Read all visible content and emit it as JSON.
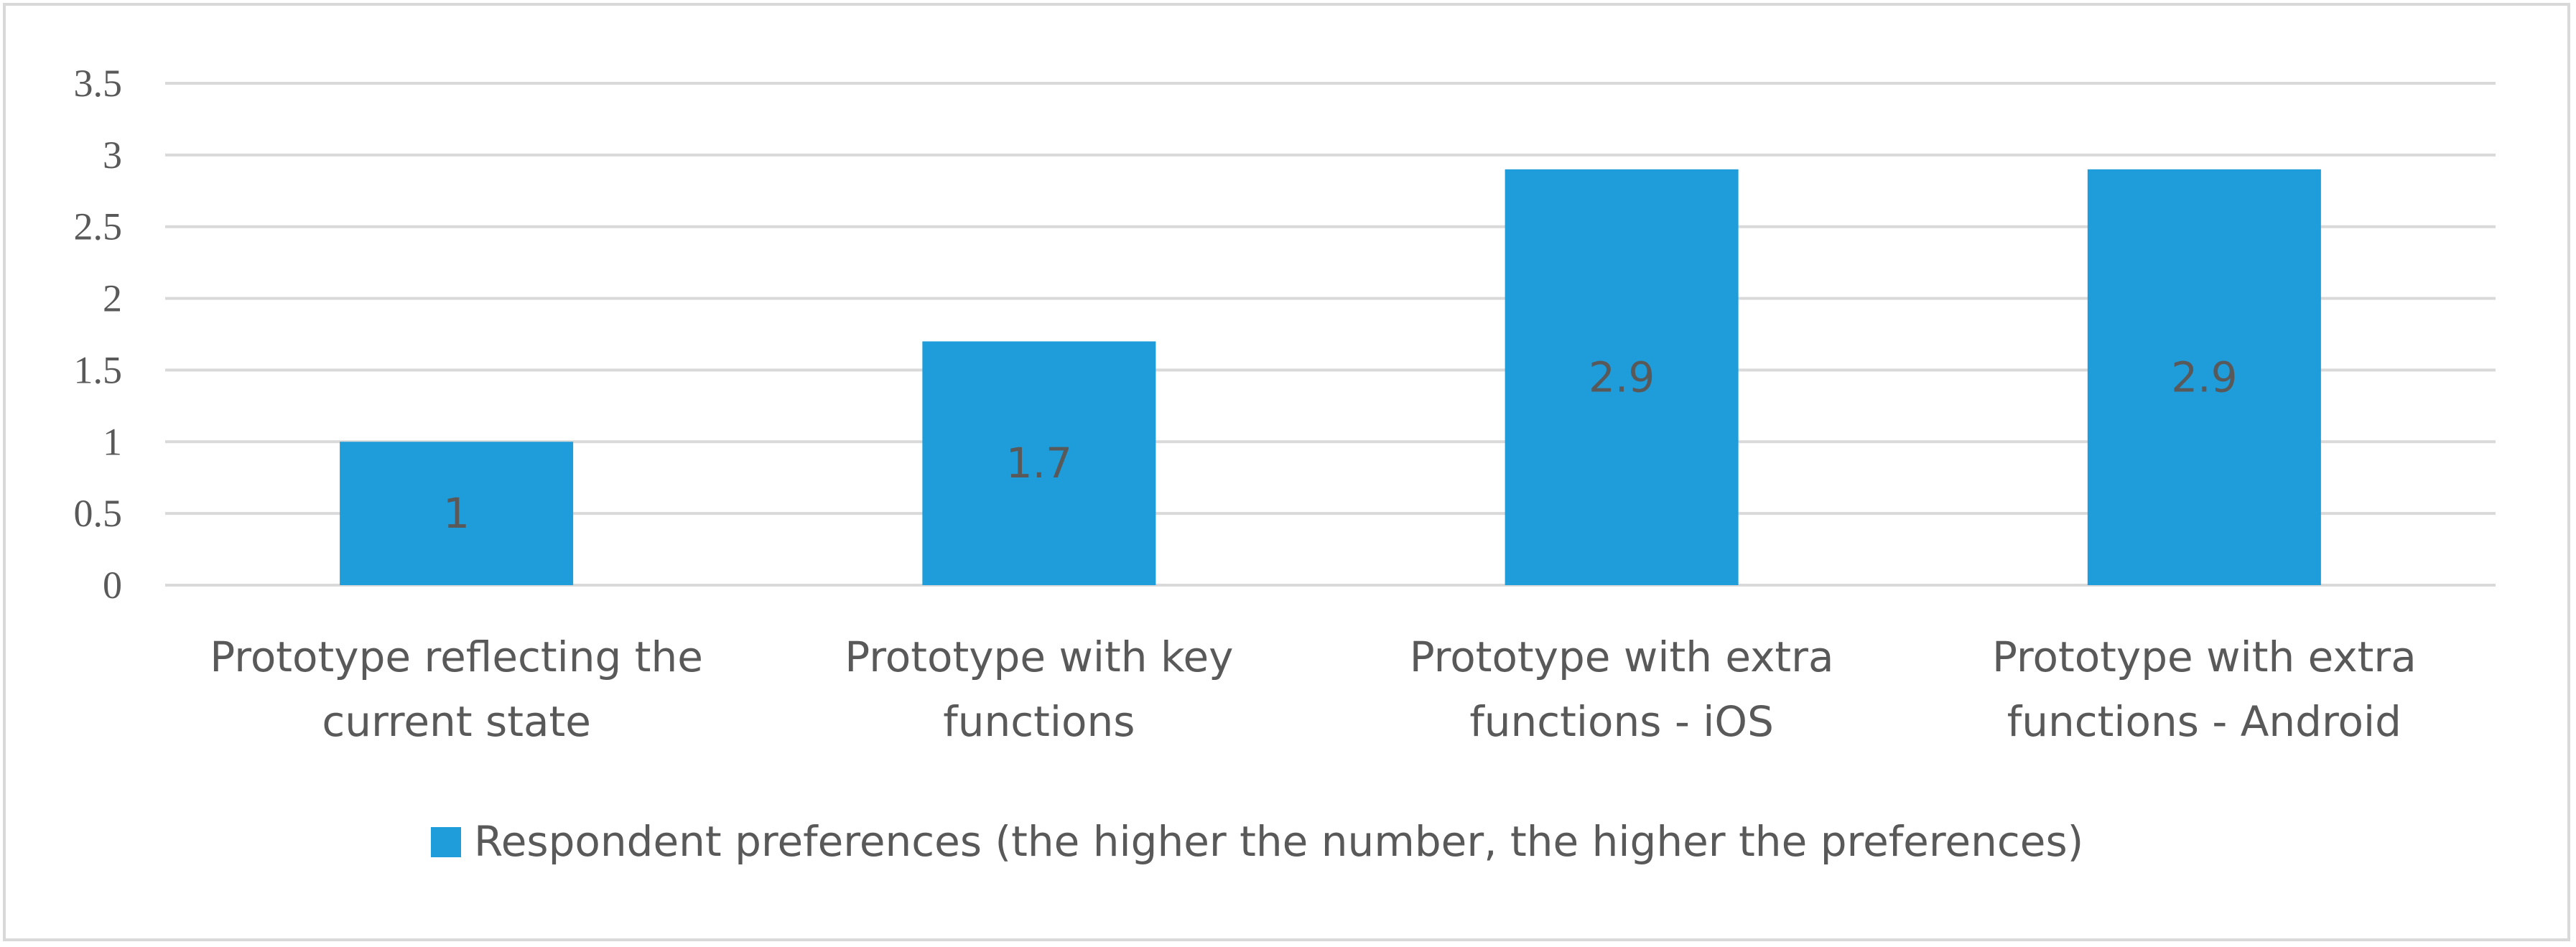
{
  "chart_data": {
    "type": "bar",
    "categories": [
      [
        "Prototype reflecting the",
        "current state"
      ],
      [
        "Prototype with key",
        "functions"
      ],
      [
        "Prototype with extra",
        "functions - iOS"
      ],
      [
        "Prototype with extra",
        "functions - Android"
      ]
    ],
    "series": [
      {
        "name": "Respondent preferences (the higher the number, the higher the preferences)",
        "values": [
          1,
          1.7,
          2.9,
          2.9
        ],
        "data_labels": [
          "1",
          "1.7",
          "2.9",
          "2.9"
        ],
        "color": "#1f9ddb"
      }
    ],
    "yticks": [
      "0",
      "0.5",
      "1",
      "1.5",
      "2",
      "2.5",
      "3",
      "3.5"
    ],
    "ylim": [
      0,
      3.5
    ],
    "grid": true,
    "legend": "bottom"
  }
}
